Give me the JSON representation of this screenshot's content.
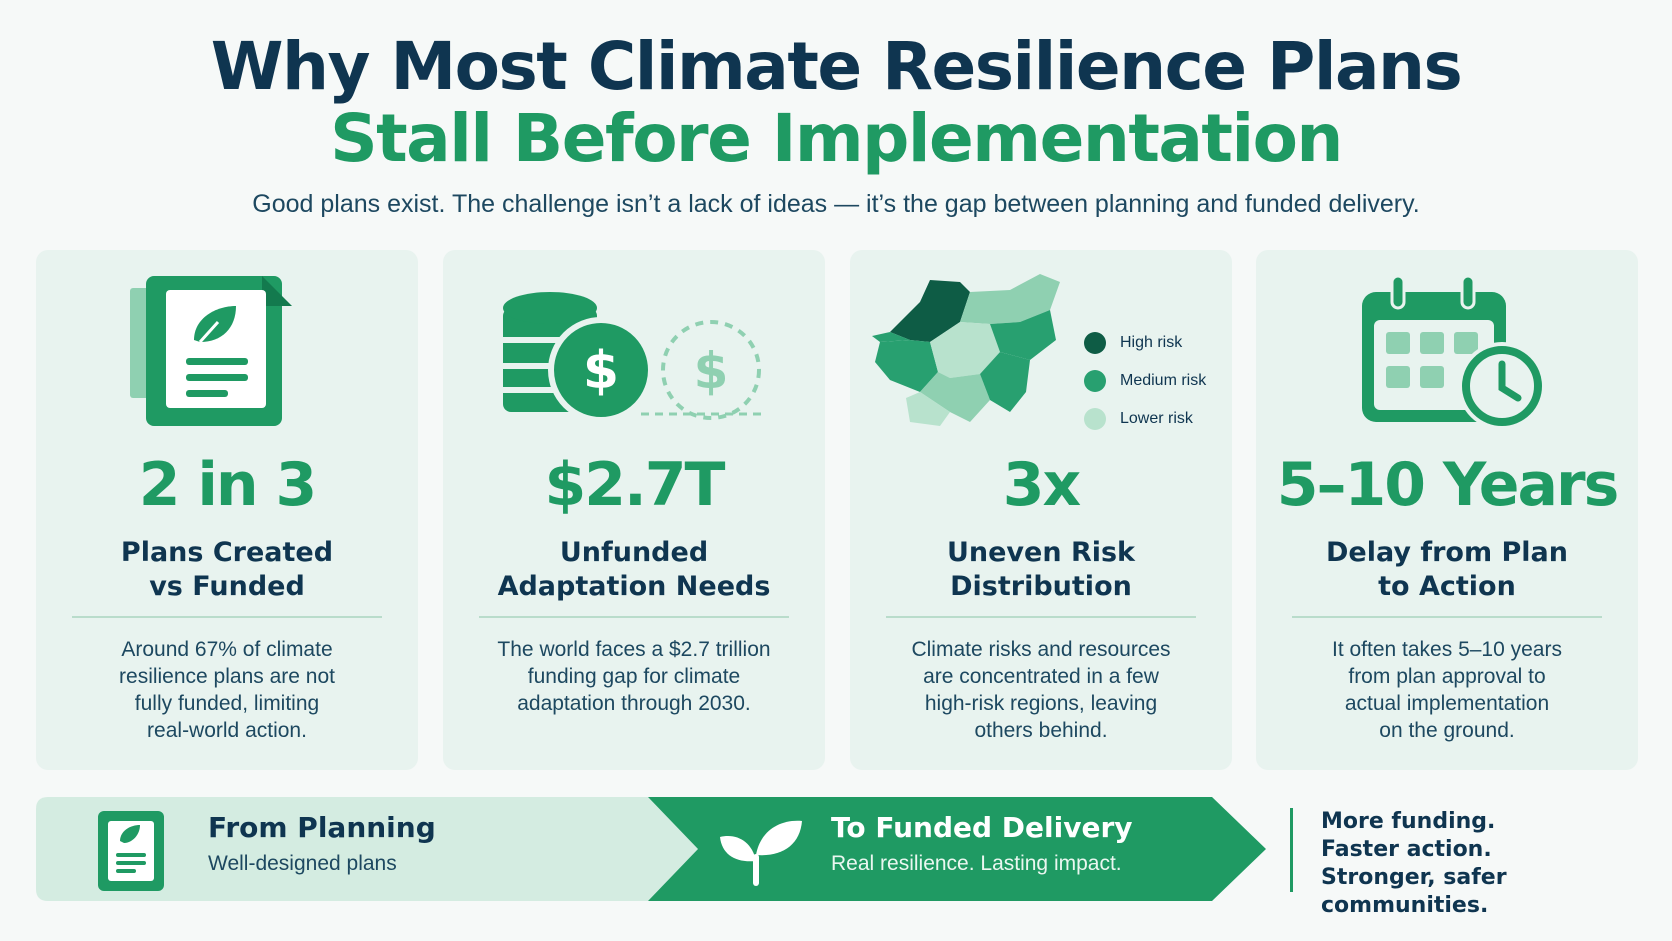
{
  "header": {
    "title_line1": "Why Most Climate Resilience Plans",
    "title_line2": "Stall Before Implementation",
    "subtitle": "Good plans exist. The challenge isn’t a lack of ideas — it’s the gap between planning and funded delivery."
  },
  "cards": [
    {
      "icon": "document-leaf-icon",
      "stat": "2 in 3",
      "label_line1": "Plans Created",
      "label_line2": "vs Funded",
      "desc_lines": [
        "Around 67% of climate",
        "resilience plans are not",
        "fully funded, limiting",
        "real-world action."
      ]
    },
    {
      "icon": "coins-dollar-icon",
      "stat": "$2.7T",
      "label_line1": "Unfunded",
      "label_line2": "Adaptation Needs",
      "desc_lines": [
        "The world faces a $2.7 trillion",
        "funding gap for climate",
        "adaptation through 2030."
      ]
    },
    {
      "icon": "risk-map-icon",
      "stat": "3x",
      "label_line1": "Uneven Risk",
      "label_line2": "Distribution",
      "desc_lines": [
        "Climate risks and resources",
        "are concentrated in a few",
        "high-risk regions, leaving",
        "others behind."
      ],
      "legend": [
        {
          "label": "High risk",
          "color": "#0e5c45"
        },
        {
          "label": "Medium risk",
          "color": "#28a070"
        },
        {
          "label": "Lower risk",
          "color": "#b8e2cd"
        }
      ]
    },
    {
      "icon": "calendar-clock-icon",
      "stat": "5–10 Years",
      "label_line1": "Delay from Plan",
      "label_line2": "to Action",
      "desc_lines": [
        "It often takes 5–10 years",
        "from plan approval to",
        "actual implementation",
        "on the ground."
      ]
    }
  ],
  "banner": {
    "from_title": "From Planning",
    "from_sub": "Well-designed plans",
    "to_title": "To Funded Delivery",
    "to_sub": "Real resilience. Lasting impact."
  },
  "closing": [
    "More funding.",
    "Faster action.",
    "Stronger, safer communities."
  ],
  "colors": {
    "navy": "#0f3550",
    "green": "#1f9a63",
    "card_bg": "#e8f3ef",
    "banner_light": "#d4ece1",
    "banner_dark": "#1f9a63"
  }
}
